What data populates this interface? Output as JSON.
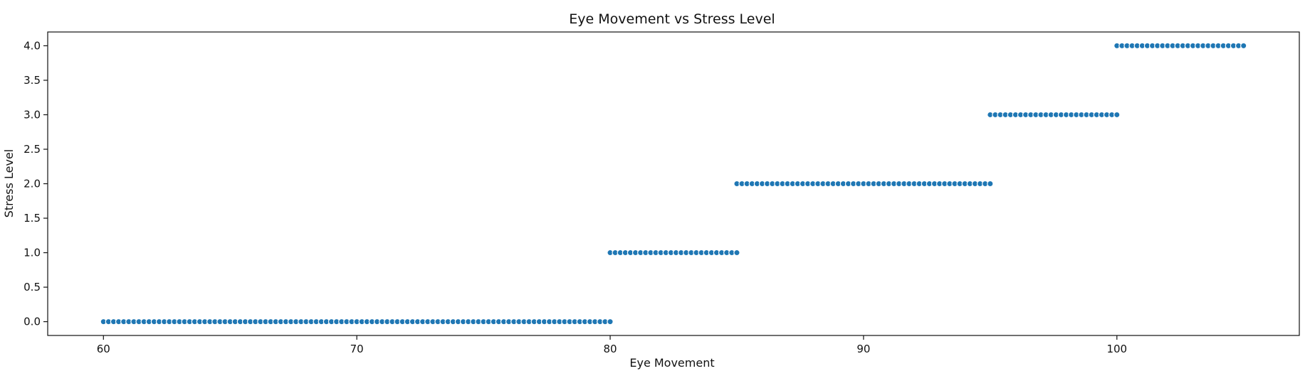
{
  "chart_data": {
    "type": "scatter",
    "title": "Eye Movement vs Stress Level",
    "xlabel": "Eye Movement",
    "ylabel": "Stress Level",
    "xlim": [
      57.8,
      107.2
    ],
    "ylim": [
      -0.2,
      4.2
    ],
    "xticks": [
      {
        "value": 60,
        "label": "60"
      },
      {
        "value": 70,
        "label": "70"
      },
      {
        "value": 80,
        "label": "80"
      },
      {
        "value": 90,
        "label": "90"
      },
      {
        "value": 100,
        "label": "100"
      }
    ],
    "yticks": [
      {
        "value": 0.0,
        "label": "0.0"
      },
      {
        "value": 0.5,
        "label": "0.5"
      },
      {
        "value": 1.0,
        "label": "1.0"
      },
      {
        "value": 1.5,
        "label": "1.5"
      },
      {
        "value": 2.0,
        "label": "2.0"
      },
      {
        "value": 2.5,
        "label": "2.5"
      },
      {
        "value": 3.0,
        "label": "3.0"
      },
      {
        "value": 3.5,
        "label": "3.5"
      },
      {
        "value": 4.0,
        "label": "4.0"
      }
    ],
    "grid": false,
    "marker_color": "#1f77b4",
    "marker_edge_color": "#ffffff",
    "series": [
      {
        "x": [
          60.0,
          60.2,
          60.4,
          60.6,
          60.8,
          61.0,
          61.2,
          61.4,
          61.6,
          61.8,
          62.0,
          62.2,
          62.4,
          62.6,
          62.8,
          63.0,
          63.2,
          63.4,
          63.6,
          63.8,
          64.0,
          64.2,
          64.4,
          64.6,
          64.8,
          65.0,
          65.2,
          65.4,
          65.6,
          65.8,
          66.0,
          66.2,
          66.4,
          66.6,
          66.8,
          67.0,
          67.2,
          67.4,
          67.6,
          67.8,
          68.0,
          68.2,
          68.4,
          68.6,
          68.8,
          69.0,
          69.2,
          69.4,
          69.6,
          69.8,
          70.0,
          70.2,
          70.4,
          70.6,
          70.8,
          71.0,
          71.2,
          71.4,
          71.6,
          71.8,
          72.0,
          72.2,
          72.4,
          72.6,
          72.8,
          73.0,
          73.2,
          73.4,
          73.6,
          73.8,
          74.0,
          74.2,
          74.4,
          74.6,
          74.8,
          75.0,
          75.2,
          75.4,
          75.6,
          75.8,
          76.0,
          76.2,
          76.4,
          76.6,
          76.8,
          77.0,
          77.2,
          77.4,
          77.6,
          77.8,
          78.0,
          78.2,
          78.4,
          78.6,
          78.8,
          79.0,
          79.2,
          79.4,
          79.6,
          79.8,
          80.0
        ],
        "y": [
          0,
          0,
          0,
          0,
          0,
          0,
          0,
          0,
          0,
          0,
          0,
          0,
          0,
          0,
          0,
          0,
          0,
          0,
          0,
          0,
          0,
          0,
          0,
          0,
          0,
          0,
          0,
          0,
          0,
          0,
          0,
          0,
          0,
          0,
          0,
          0,
          0,
          0,
          0,
          0,
          0,
          0,
          0,
          0,
          0,
          0,
          0,
          0,
          0,
          0,
          0,
          0,
          0,
          0,
          0,
          0,
          0,
          0,
          0,
          0,
          0,
          0,
          0,
          0,
          0,
          0,
          0,
          0,
          0,
          0,
          0,
          0,
          0,
          0,
          0,
          0,
          0,
          0,
          0,
          0,
          0,
          0,
          0,
          0,
          0,
          0,
          0,
          0,
          0,
          0,
          0,
          0,
          0,
          0,
          0,
          0,
          0,
          0,
          0,
          0,
          0
        ]
      },
      {
        "x": [
          80.0,
          80.2,
          80.4,
          80.6,
          80.8,
          81.0,
          81.2,
          81.4,
          81.6,
          81.8,
          82.0,
          82.2,
          82.4,
          82.6,
          82.8,
          83.0,
          83.2,
          83.4,
          83.6,
          83.8,
          84.0,
          84.2,
          84.4,
          84.6,
          84.8,
          85.0
        ],
        "y": [
          1,
          1,
          1,
          1,
          1,
          1,
          1,
          1,
          1,
          1,
          1,
          1,
          1,
          1,
          1,
          1,
          1,
          1,
          1,
          1,
          1,
          1,
          1,
          1,
          1,
          1
        ]
      },
      {
        "x": [
          85.0,
          85.2,
          85.4,
          85.6,
          85.8,
          86.0,
          86.2,
          86.4,
          86.6,
          86.8,
          87.0,
          87.2,
          87.4,
          87.6,
          87.8,
          88.0,
          88.2,
          88.4,
          88.6,
          88.8,
          89.0,
          89.2,
          89.4,
          89.6,
          89.8,
          90.0,
          90.2,
          90.4,
          90.6,
          90.8,
          91.0,
          91.2,
          91.4,
          91.6,
          91.8,
          92.0,
          92.2,
          92.4,
          92.6,
          92.8,
          93.0,
          93.2,
          93.4,
          93.6,
          93.8,
          94.0,
          94.2,
          94.4,
          94.6,
          94.8,
          95.0
        ],
        "y": [
          2,
          2,
          2,
          2,
          2,
          2,
          2,
          2,
          2,
          2,
          2,
          2,
          2,
          2,
          2,
          2,
          2,
          2,
          2,
          2,
          2,
          2,
          2,
          2,
          2,
          2,
          2,
          2,
          2,
          2,
          2,
          2,
          2,
          2,
          2,
          2,
          2,
          2,
          2,
          2,
          2,
          2,
          2,
          2,
          2,
          2,
          2,
          2,
          2,
          2,
          2
        ]
      },
      {
        "x": [
          95.0,
          95.2,
          95.4,
          95.6,
          95.8,
          96.0,
          96.2,
          96.4,
          96.6,
          96.8,
          97.0,
          97.2,
          97.4,
          97.6,
          97.8,
          98.0,
          98.2,
          98.4,
          98.6,
          98.8,
          99.0,
          99.2,
          99.4,
          99.6,
          99.8,
          100.0
        ],
        "y": [
          3,
          3,
          3,
          3,
          3,
          3,
          3,
          3,
          3,
          3,
          3,
          3,
          3,
          3,
          3,
          3,
          3,
          3,
          3,
          3,
          3,
          3,
          3,
          3,
          3,
          3
        ]
      },
      {
        "x": [
          100.0,
          100.2,
          100.4,
          100.6,
          100.8,
          101.0,
          101.2,
          101.4,
          101.6,
          101.8,
          102.0,
          102.2,
          102.4,
          102.6,
          102.8,
          103.0,
          103.2,
          103.4,
          103.6,
          103.8,
          104.0,
          104.2,
          104.4,
          104.6,
          104.8,
          105.0
        ],
        "y": [
          4,
          4,
          4,
          4,
          4,
          4,
          4,
          4,
          4,
          4,
          4,
          4,
          4,
          4,
          4,
          4,
          4,
          4,
          4,
          4,
          4,
          4,
          4,
          4,
          4,
          4
        ]
      }
    ]
  }
}
